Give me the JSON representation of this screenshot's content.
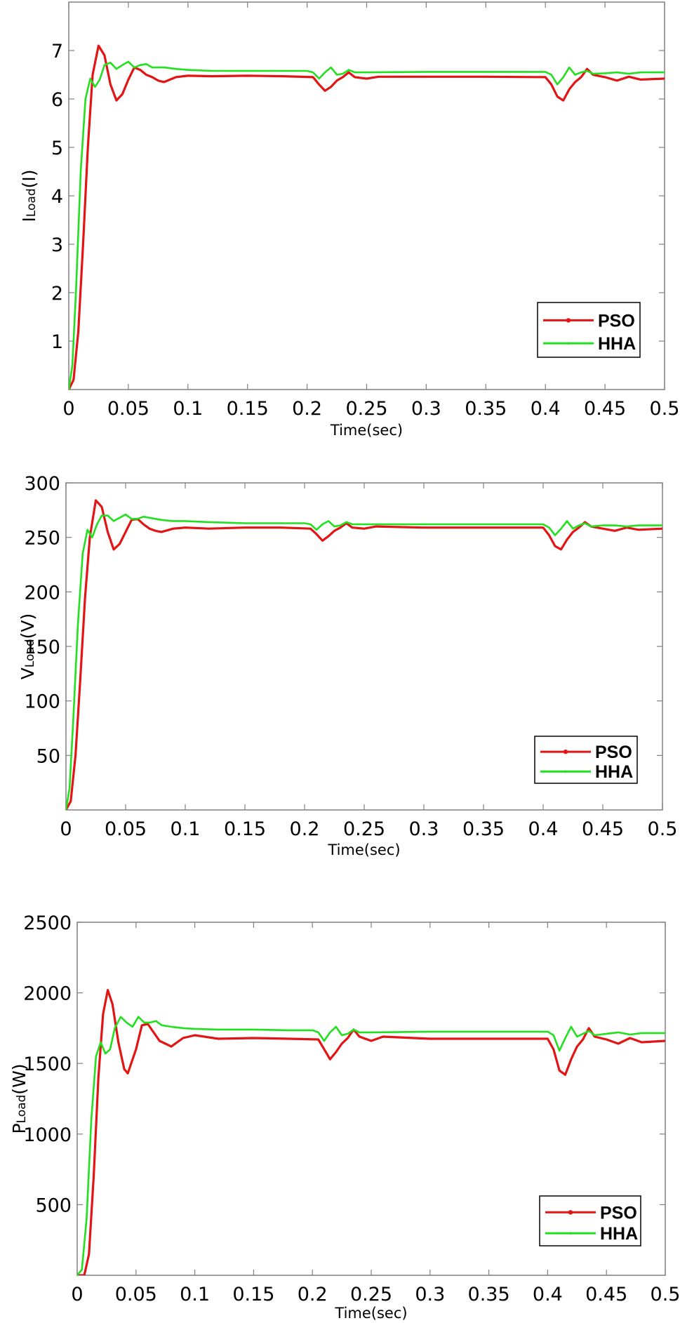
{
  "colors": {
    "pso": "#e31414",
    "hha": "#22e01e",
    "axis": "#808080",
    "legend_border": "#000000"
  },
  "legend": {
    "items": [
      {
        "label": "PSO",
        "color": "#e31414",
        "marker": "dot"
      },
      {
        "label": "HHA",
        "color": "#22e01e",
        "marker": "dot"
      }
    ]
  },
  "chart_data": [
    {
      "type": "line",
      "title": "",
      "xlabel": "Time(sec)",
      "ylabel": "ILoad(I)",
      "ylabel_main": "I",
      "ylabel_sub": "Load",
      "ylabel_unit": "(I)",
      "xlim": [
        0,
        0.5
      ],
      "ylim": [
        0,
        8
      ],
      "xticks": [
        0,
        0.05,
        0.1,
        0.15,
        0.2,
        0.25,
        0.3,
        0.35,
        0.4,
        0.45,
        0.5
      ],
      "xtick_labels": [
        "0",
        "0.05",
        "0.1",
        "0.15",
        "0.2",
        "0.25",
        "0.3",
        "0.35",
        "0.4",
        "0.45",
        "0.5"
      ],
      "yticks": [
        1,
        2,
        3,
        4,
        5,
        6,
        7
      ],
      "ytick_labels": [
        "1",
        "2",
        "3",
        "4",
        "5",
        "6",
        "7"
      ],
      "grid": false,
      "legend_position": "lower right",
      "series": [
        {
          "name": "PSO",
          "color": "#e31414",
          "x": [
            0,
            0.004,
            0.008,
            0.012,
            0.016,
            0.02,
            0.025,
            0.03,
            0.035,
            0.04,
            0.045,
            0.05,
            0.055,
            0.06,
            0.065,
            0.07,
            0.075,
            0.08,
            0.09,
            0.1,
            0.12,
            0.15,
            0.18,
            0.205,
            0.21,
            0.215,
            0.22,
            0.225,
            0.23,
            0.235,
            0.24,
            0.25,
            0.26,
            0.3,
            0.35,
            0.4,
            0.405,
            0.41,
            0.415,
            0.42,
            0.425,
            0.43,
            0.435,
            0.44,
            0.45,
            0.46,
            0.47,
            0.48,
            0.5
          ],
          "y": [
            0,
            0.2,
            1.2,
            3.0,
            5.0,
            6.5,
            7.1,
            6.9,
            6.3,
            5.97,
            6.1,
            6.4,
            6.65,
            6.6,
            6.5,
            6.45,
            6.38,
            6.35,
            6.45,
            6.48,
            6.47,
            6.48,
            6.47,
            6.45,
            6.3,
            6.17,
            6.25,
            6.38,
            6.45,
            6.55,
            6.45,
            6.42,
            6.46,
            6.46,
            6.46,
            6.45,
            6.3,
            6.05,
            5.97,
            6.2,
            6.35,
            6.45,
            6.62,
            6.5,
            6.45,
            6.38,
            6.46,
            6.4,
            6.42
          ]
        },
        {
          "name": "HHA",
          "color": "#22e01e",
          "x": [
            0,
            0.003,
            0.006,
            0.01,
            0.014,
            0.018,
            0.022,
            0.026,
            0.03,
            0.035,
            0.04,
            0.045,
            0.05,
            0.055,
            0.06,
            0.065,
            0.07,
            0.08,
            0.09,
            0.1,
            0.12,
            0.15,
            0.18,
            0.2,
            0.205,
            0.21,
            0.215,
            0.22,
            0.225,
            0.23,
            0.235,
            0.24,
            0.25,
            0.3,
            0.35,
            0.4,
            0.405,
            0.41,
            0.415,
            0.42,
            0.425,
            0.43,
            0.435,
            0.44,
            0.45,
            0.46,
            0.47,
            0.48,
            0.5
          ],
          "y": [
            0,
            0.5,
            2.0,
            4.5,
            6.0,
            6.42,
            6.25,
            6.4,
            6.7,
            6.75,
            6.62,
            6.7,
            6.77,
            6.65,
            6.7,
            6.72,
            6.65,
            6.65,
            6.62,
            6.6,
            6.58,
            6.58,
            6.58,
            6.58,
            6.55,
            6.42,
            6.55,
            6.65,
            6.5,
            6.52,
            6.6,
            6.55,
            6.55,
            6.56,
            6.56,
            6.56,
            6.5,
            6.3,
            6.45,
            6.65,
            6.5,
            6.55,
            6.58,
            6.52,
            6.53,
            6.55,
            6.52,
            6.55,
            6.55
          ]
        }
      ]
    },
    {
      "type": "line",
      "title": "",
      "xlabel": "Time(sec)",
      "ylabel": "VLoad(V)",
      "ylabel_main": "V",
      "ylabel_sub": "Load",
      "ylabel_unit": "(V)",
      "xlim": [
        0,
        0.5
      ],
      "ylim": [
        0,
        300
      ],
      "xticks": [
        0,
        0.05,
        0.1,
        0.15,
        0.2,
        0.25,
        0.3,
        0.35,
        0.4,
        0.45,
        0.5
      ],
      "xtick_labels": [
        "0",
        "0.05",
        "0.1",
        "0.15",
        "0.2",
        "0.25",
        "0.3",
        "0.35",
        "0.4",
        "0.45",
        "0.5"
      ],
      "yticks": [
        50,
        100,
        150,
        200,
        250,
        300
      ],
      "ytick_labels": [
        "50",
        "100",
        "150",
        "200",
        "250",
        "300"
      ],
      "grid": false,
      "legend_position": "lower right",
      "series": [
        {
          "name": "PSO",
          "color": "#e31414",
          "x": [
            0,
            0.004,
            0.008,
            0.012,
            0.016,
            0.02,
            0.025,
            0.03,
            0.035,
            0.04,
            0.045,
            0.05,
            0.055,
            0.06,
            0.065,
            0.07,
            0.075,
            0.08,
            0.09,
            0.1,
            0.12,
            0.15,
            0.18,
            0.205,
            0.21,
            0.215,
            0.22,
            0.225,
            0.23,
            0.235,
            0.24,
            0.25,
            0.26,
            0.3,
            0.35,
            0.4,
            0.405,
            0.41,
            0.415,
            0.42,
            0.425,
            0.43,
            0.435,
            0.44,
            0.45,
            0.46,
            0.47,
            0.48,
            0.5
          ],
          "y": [
            0,
            8,
            50,
            120,
            195,
            250,
            284,
            278,
            255,
            239,
            244,
            255,
            266,
            267,
            262,
            258,
            256,
            255,
            258,
            259,
            258,
            259,
            259,
            258,
            253,
            247,
            251,
            256,
            259,
            263,
            259,
            258,
            260,
            259,
            259,
            259,
            252,
            242,
            239,
            248,
            255,
            259,
            264,
            260,
            258,
            256,
            259,
            257,
            258
          ]
        },
        {
          "name": "HHA",
          "color": "#22e01e",
          "x": [
            0,
            0.003,
            0.006,
            0.01,
            0.014,
            0.018,
            0.022,
            0.026,
            0.03,
            0.035,
            0.04,
            0.045,
            0.05,
            0.055,
            0.06,
            0.065,
            0.07,
            0.08,
            0.09,
            0.1,
            0.12,
            0.15,
            0.18,
            0.2,
            0.205,
            0.21,
            0.215,
            0.22,
            0.225,
            0.23,
            0.235,
            0.24,
            0.25,
            0.3,
            0.35,
            0.4,
            0.405,
            0.41,
            0.415,
            0.42,
            0.425,
            0.43,
            0.435,
            0.44,
            0.45,
            0.46,
            0.47,
            0.48,
            0.5
          ],
          "y": [
            0,
            20,
            80,
            170,
            235,
            257,
            250,
            262,
            270,
            270,
            265,
            268,
            271,
            267,
            267,
            269,
            268,
            266,
            265,
            265,
            264,
            263,
            263,
            263,
            262,
            257,
            262,
            265,
            260,
            261,
            264,
            262,
            262,
            262,
            262,
            262,
            259,
            252,
            258,
            265,
            258,
            261,
            263,
            260,
            261,
            261,
            260,
            261,
            261
          ]
        }
      ]
    },
    {
      "type": "line",
      "title": "",
      "xlabel": "Time(sec)",
      "ylabel": "PLoad(W)",
      "ylabel_main": "P",
      "ylabel_sub": "Load",
      "ylabel_unit": "(W)",
      "xlim": [
        0,
        0.5
      ],
      "ylim": [
        0,
        2500
      ],
      "xticks": [
        0,
        0.05,
        0.1,
        0.15,
        0.2,
        0.25,
        0.3,
        0.35,
        0.4,
        0.45,
        0.5
      ],
      "xtick_labels": [
        "0",
        "0.05",
        "0.1",
        "0.15",
        "0.2",
        "0.25",
        "0.3",
        "0.35",
        "0.4",
        "0.45",
        "0.5"
      ],
      "yticks": [
        500,
        1000,
        1500,
        2000,
        2500
      ],
      "ytick_labels": [
        "500",
        "1000",
        "1500",
        "2000",
        "2500"
      ],
      "grid": false,
      "legend_position": "lower right",
      "series": [
        {
          "name": "PSO",
          "color": "#e31414",
          "x": [
            0,
            0.006,
            0.01,
            0.014,
            0.018,
            0.022,
            0.026,
            0.03,
            0.035,
            0.04,
            0.043,
            0.05,
            0.055,
            0.06,
            0.065,
            0.07,
            0.075,
            0.08,
            0.09,
            0.1,
            0.12,
            0.15,
            0.18,
            0.205,
            0.21,
            0.215,
            0.22,
            0.225,
            0.23,
            0.235,
            0.24,
            0.25,
            0.26,
            0.3,
            0.35,
            0.4,
            0.405,
            0.41,
            0.415,
            0.42,
            0.425,
            0.43,
            0.435,
            0.44,
            0.45,
            0.46,
            0.47,
            0.48,
            0.5
          ],
          "y": [
            0,
            0,
            150,
            700,
            1400,
            1850,
            2020,
            1920,
            1650,
            1460,
            1430,
            1600,
            1770,
            1780,
            1720,
            1660,
            1640,
            1620,
            1680,
            1700,
            1675,
            1680,
            1675,
            1670,
            1600,
            1530,
            1580,
            1640,
            1680,
            1740,
            1690,
            1660,
            1690,
            1675,
            1675,
            1675,
            1600,
            1450,
            1420,
            1530,
            1620,
            1670,
            1750,
            1690,
            1670,
            1640,
            1680,
            1650,
            1660
          ]
        },
        {
          "name": "HHA",
          "color": "#22e01e",
          "x": [
            0,
            0.004,
            0.008,
            0.012,
            0.016,
            0.02,
            0.024,
            0.028,
            0.032,
            0.037,
            0.042,
            0.047,
            0.052,
            0.057,
            0.062,
            0.067,
            0.072,
            0.08,
            0.09,
            0.1,
            0.12,
            0.15,
            0.18,
            0.2,
            0.205,
            0.21,
            0.215,
            0.22,
            0.225,
            0.23,
            0.235,
            0.24,
            0.25,
            0.3,
            0.35,
            0.4,
            0.405,
            0.41,
            0.415,
            0.42,
            0.425,
            0.43,
            0.435,
            0.44,
            0.45,
            0.46,
            0.47,
            0.48,
            0.5
          ],
          "y": [
            0,
            40,
            400,
            1100,
            1550,
            1650,
            1570,
            1600,
            1750,
            1830,
            1790,
            1760,
            1830,
            1790,
            1790,
            1800,
            1770,
            1760,
            1750,
            1745,
            1740,
            1740,
            1735,
            1735,
            1720,
            1660,
            1720,
            1760,
            1700,
            1710,
            1740,
            1720,
            1720,
            1725,
            1725,
            1725,
            1700,
            1590,
            1680,
            1760,
            1690,
            1710,
            1730,
            1700,
            1710,
            1720,
            1705,
            1715,
            1715
          ]
        }
      ]
    }
  ]
}
